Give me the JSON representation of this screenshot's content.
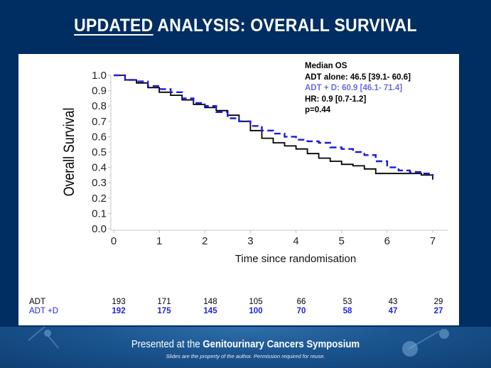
{
  "slide": {
    "title_underlined": "UPDATED",
    "title_rest": " ANALYSIS: OVERALL SURVIVAL",
    "footer_prefix": "Presented at the ",
    "footer_bold": "Genitourinary Cancers Symposium",
    "footer_note": "Slides are the property of the author. Permission required for reuse."
  },
  "colors": {
    "background": "#002d62",
    "adt": "#000000",
    "adt_d": "#1a1adc",
    "annotation_blue": "#6a6ae6"
  },
  "annotation": {
    "heading": "Median OS",
    "adt_alone": "ADT alone: 46.5 [39.1- 60.6]",
    "adt_d": "ADT + D: 60.9 [46.1- 71.4]",
    "hr": "HR: 0.9 [0.7-1.2]",
    "p": "p=0.44"
  },
  "risk_table": {
    "rows": [
      {
        "label": "ADT",
        "values": [
          "193",
          "171",
          "148",
          "105",
          "66",
          "53",
          "43",
          "29"
        ]
      },
      {
        "label": "ADT +D",
        "values": [
          "192",
          "175",
          "145",
          "100",
          "70",
          "58",
          "47",
          "27"
        ]
      }
    ]
  },
  "chart_data": {
    "type": "line",
    "subtype": "kaplan-meier",
    "title": "UPDATED ANALYSIS: OVERALL SURVIVAL",
    "xlabel": "Time since randomisation",
    "ylabel": "Overall Survival",
    "xlim": [
      0,
      7
    ],
    "ylim": [
      0,
      1.0
    ],
    "xticks": [
      "0",
      "1",
      "2",
      "3",
      "4",
      "5",
      "6",
      "7"
    ],
    "yticks": [
      "0.0",
      "0.1",
      "0.2",
      "0.3",
      "0.4",
      "0.5",
      "0.6",
      "0.7",
      "0.8",
      "0.9",
      "1.0"
    ],
    "grid": false,
    "series": [
      {
        "name": "ADT",
        "style": "solid",
        "x": [
          0,
          0.25,
          0.5,
          0.75,
          1,
          1.25,
          1.5,
          1.75,
          2,
          2.25,
          2.5,
          2.75,
          3,
          3.25,
          3.5,
          3.75,
          4,
          4.25,
          4.5,
          4.75,
          5,
          5.25,
          5.5,
          5.75,
          6,
          6.5,
          6.75,
          7
        ],
        "y": [
          1.0,
          0.97,
          0.95,
          0.92,
          0.89,
          0.87,
          0.84,
          0.81,
          0.79,
          0.77,
          0.74,
          0.7,
          0.64,
          0.59,
          0.56,
          0.54,
          0.52,
          0.49,
          0.46,
          0.44,
          0.42,
          0.41,
          0.39,
          0.36,
          0.36,
          0.36,
          0.35,
          0.32
        ]
      },
      {
        "name": "ADT + D",
        "style": "dashed",
        "x": [
          0,
          0.25,
          0.5,
          0.75,
          1,
          1.25,
          1.5,
          1.75,
          2,
          2.25,
          2.5,
          2.75,
          3,
          3.25,
          3.5,
          3.75,
          4,
          4.25,
          4.5,
          4.75,
          5,
          5.25,
          5.5,
          5.75,
          6,
          6.25,
          6.5,
          6.75,
          7
        ],
        "y": [
          1.0,
          0.97,
          0.96,
          0.93,
          0.91,
          0.89,
          0.85,
          0.82,
          0.8,
          0.76,
          0.72,
          0.7,
          0.67,
          0.64,
          0.62,
          0.6,
          0.58,
          0.57,
          0.56,
          0.53,
          0.52,
          0.5,
          0.48,
          0.44,
          0.4,
          0.38,
          0.37,
          0.36,
          0.34
        ]
      }
    ]
  }
}
